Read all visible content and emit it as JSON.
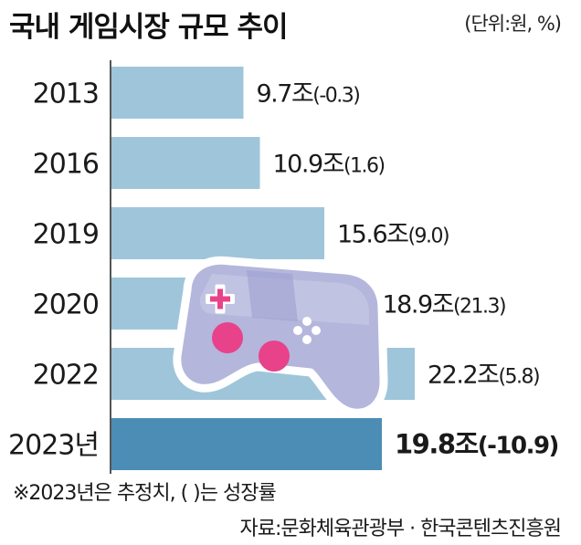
{
  "title": "국내 게임시장 규모 추이",
  "unit_note": "(단위:원, %)",
  "footnote": "※2023년은 추정치, (    )는 성장률",
  "source": "자료:문화체육관광부 · 한국콘텐츠진흥원",
  "colors": {
    "bar": "#9fc5da",
    "bar_highlight": "#4b8db5",
    "axis": "#555555",
    "controller_body": "#b4b6dc",
    "controller_outline": "#ffffff",
    "controller_button": "#e8428a"
  },
  "chart_data": {
    "type": "bar",
    "orientation": "horizontal",
    "categories": [
      "2013",
      "2016",
      "2019",
      "2020",
      "2022",
      "2023년"
    ],
    "values": [
      9.7,
      10.9,
      15.6,
      18.9,
      22.2,
      19.8
    ],
    "value_labels": [
      "9.7조",
      "10.9조",
      "15.6조",
      "18.9조",
      "22.2조",
      "19.8조"
    ],
    "growth_labels": [
      "(-0.3)",
      "(1.6)",
      "(9.0)",
      "(21.3)",
      "(5.8)",
      "(-10.9)"
    ],
    "highlight_index": 5,
    "title": "국내 게임시장 규모 추이",
    "xlabel": "",
    "ylabel": "",
    "xlim": [
      0,
      25
    ]
  }
}
